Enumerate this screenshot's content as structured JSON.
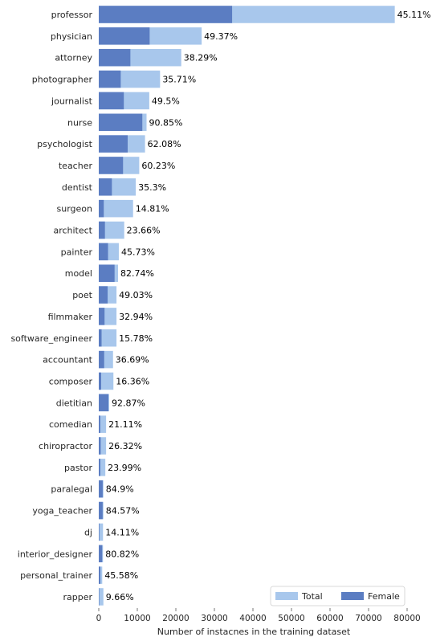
{
  "chart_data": {
    "type": "bar",
    "orientation": "horizontal",
    "stacked": "overlay",
    "xlabel": "Number of instacnes in the training dataset",
    "xlim": [
      0,
      80000
    ],
    "x_ticks": [
      0,
      10000,
      20000,
      30000,
      40000,
      50000,
      60000,
      70000,
      80000
    ],
    "x_tick_labels": [
      "0",
      "10000",
      "20000",
      "30000",
      "40000",
      "50000",
      "60000",
      "70000",
      "80000"
    ],
    "grid": false,
    "legend_position": "bottom-right",
    "categories": [
      "professor",
      "physician",
      "attorney",
      "photographer",
      "journalist",
      "nurse",
      "psychologist",
      "teacher",
      "dentist",
      "surgeon",
      "architect",
      "painter",
      "model",
      "poet",
      "filmmaker",
      "software_engineer",
      "accountant",
      "composer",
      "dietitian",
      "comedian",
      "chiropractor",
      "pastor",
      "paralegal",
      "yoga_teacher",
      "dj",
      "interior_designer",
      "personal_trainer",
      "rapper"
    ],
    "series": [
      {
        "name": "Total",
        "color": "#a8c7ec",
        "values": [
          76800,
          26700,
          21400,
          15900,
          13100,
          12400,
          12000,
          10500,
          9600,
          8900,
          6600,
          5200,
          5000,
          4600,
          4600,
          4600,
          3700,
          3800,
          2700,
          1900,
          1900,
          1700,
          1200,
          1200,
          1100,
          1100,
          900,
          1200
        ]
      },
      {
        "name": "Female",
        "color": "#5b7dc2",
        "values": [
          34600,
          13200,
          8200,
          5700,
          6500,
          11300,
          7500,
          6300,
          3400,
          1300,
          1600,
          2400,
          4100,
          2300,
          1500,
          730,
          1400,
          620,
          2500,
          400,
          500,
          410,
          1020,
          1010,
          155,
          890,
          410,
          116
        ]
      }
    ],
    "percent_labels": [
      "45.11%",
      "49.37%",
      "38.29%",
      "35.71%",
      "49.5%",
      "90.85%",
      "62.08%",
      "60.23%",
      "35.3%",
      "14.81%",
      "23.66%",
      "45.73%",
      "82.74%",
      "49.03%",
      "32.94%",
      "15.78%",
      "36.69%",
      "16.36%",
      "92.87%",
      "21.11%",
      "26.32%",
      "23.99%",
      "84.9%",
      "84.57%",
      "14.11%",
      "80.82%",
      "45.58%",
      "9.66%"
    ]
  }
}
